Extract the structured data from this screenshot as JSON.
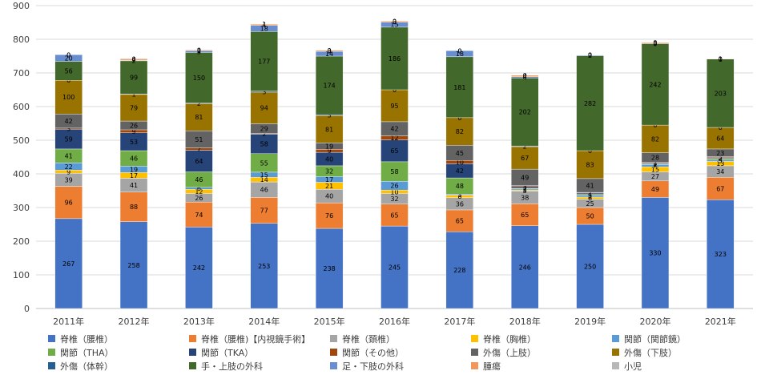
{
  "chart_data": {
    "type": "bar",
    "stacked": true,
    "title": "",
    "xlabel": "",
    "ylabel": "",
    "ylim": [
      0,
      900
    ],
    "yticks": [
      0,
      100,
      200,
      300,
      400,
      500,
      600,
      700,
      800,
      900
    ],
    "grid": true,
    "legend": "bottom",
    "categories": [
      "2011年",
      "2012年",
      "2013年",
      "2014年",
      "2015年",
      "2016年",
      "2017年",
      "2018年",
      "2019年",
      "2020年",
      "2021年"
    ],
    "series": [
      {
        "name": "脊椎（腰椎）",
        "color": "#4472c4",
        "values": [
          267,
          258,
          242,
          253,
          238,
          245,
          228,
          246,
          250,
          330,
          323
        ]
      },
      {
        "name": "脊椎（腰椎)【内視鏡手術】",
        "color": "#ed7d31",
        "values": [
          96,
          88,
          74,
          77,
          76,
          65,
          65,
          65,
          50,
          49,
          67
        ]
      },
      {
        "name": "脊椎（頚椎）",
        "color": "#a5a5a5",
        "values": [
          39,
          41,
          26,
          46,
          40,
          32,
          36,
          38,
          25,
          27,
          34
        ]
      },
      {
        "name": "脊椎（胸椎）",
        "color": "#ffc000",
        "values": [
          9,
          17,
          12,
          14,
          21,
          10,
          8,
          3,
          6,
          15,
          13
        ]
      },
      {
        "name": "関節（関節鏡）",
        "color": "#5b9bd5",
        "values": [
          22,
          19,
          6,
          15,
          17,
          26,
          3,
          3,
          5,
          7,
          5
        ]
      },
      {
        "name": "関節（THA）",
        "color": "#70ad47",
        "values": [
          41,
          46,
          46,
          55,
          32,
          58,
          48,
          2,
          3,
          2,
          4
        ]
      },
      {
        "name": "関節（TKA）",
        "color": "#264478",
        "values": [
          59,
          53,
          64,
          58,
          40,
          65,
          42,
          5,
          4,
          3,
          2
        ]
      },
      {
        "name": "関節（その他）",
        "color": "#9e480e",
        "values": [
          3,
          9,
          7,
          2,
          9,
          12,
          10,
          3,
          2,
          2,
          3
        ]
      },
      {
        "name": "外傷（上肢）",
        "color": "#636363",
        "values": [
          42,
          26,
          51,
          29,
          19,
          42,
          45,
          49,
          41,
          28,
          23
        ]
      },
      {
        "name": "外傷（下肢）",
        "color": "#997300",
        "values": [
          100,
          79,
          81,
          94,
          81,
          95,
          82,
          67,
          83,
          82,
          64
        ]
      },
      {
        "name": "外傷（体幹）",
        "color": "#255e91",
        "values": [
          0,
          1,
          2,
          3,
          3,
          0,
          0,
          2,
          0,
          0,
          0
        ]
      },
      {
        "name": "手・上肢の外科",
        "color": "#43682b",
        "values": [
          56,
          99,
          150,
          177,
          174,
          186,
          181,
          202,
          282,
          242,
          203
        ]
      },
      {
        "name": "足・下肢の外科",
        "color": "#698ed0",
        "values": [
          20,
          2,
          5,
          18,
          14,
          15,
          18,
          4,
          2,
          0,
          0
        ]
      },
      {
        "name": "腫瘍",
        "color": "#f1975a",
        "values": [
          0,
          4,
          2,
          4,
          3,
          3,
          0,
          4,
          0,
          3,
          1
        ]
      },
      {
        "name": "小児",
        "color": "#b7b7b7",
        "values": [
          0,
          0,
          0,
          1,
          0,
          0,
          0,
          0,
          0,
          0,
          0
        ]
      }
    ]
  }
}
